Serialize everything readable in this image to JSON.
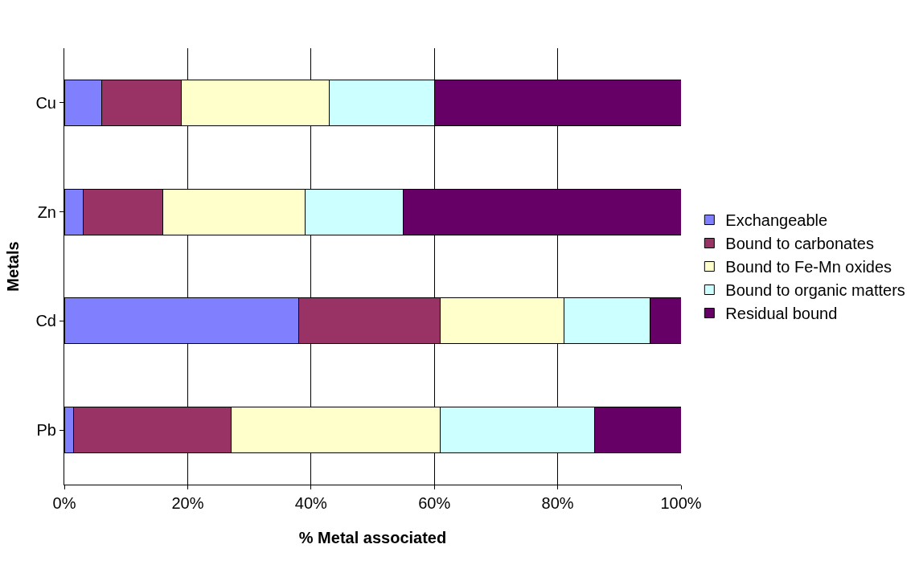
{
  "chart_data": {
    "type": "bar",
    "orientation": "horizontal",
    "stacked": true,
    "xlabel": "% Metal associated",
    "ylabel": "Metals",
    "categories": [
      "Cu",
      "Zn",
      "Cd",
      "Pb"
    ],
    "series": [
      {
        "name": "Exchangeable",
        "color": "#8080ff",
        "values": [
          6,
          3,
          38,
          1.5
        ]
      },
      {
        "name": "Bound to carbonates",
        "color": "#993366",
        "values": [
          13,
          13,
          23,
          25.5
        ]
      },
      {
        "name": "Bound to Fe-Mn oxides",
        "color": "#ffffcc",
        "values": [
          24,
          23,
          20,
          34
        ]
      },
      {
        "name": "Bound to organic matters",
        "color": "#ccffff",
        "values": [
          17,
          16,
          14,
          25
        ]
      },
      {
        "name": "Residual bound",
        "color": "#660066",
        "values": [
          40,
          45,
          5,
          14
        ]
      }
    ],
    "xlim": [
      0,
      100
    ],
    "xticks": [
      {
        "value": 0,
        "label": "0%"
      },
      {
        "value": 20,
        "label": "20%"
      },
      {
        "value": 40,
        "label": "40%"
      },
      {
        "value": 60,
        "label": "60%"
      },
      {
        "value": 80,
        "label": "80%"
      },
      {
        "value": 100,
        "label": "100%"
      }
    ],
    "grid": "x",
    "legend": "right"
  }
}
